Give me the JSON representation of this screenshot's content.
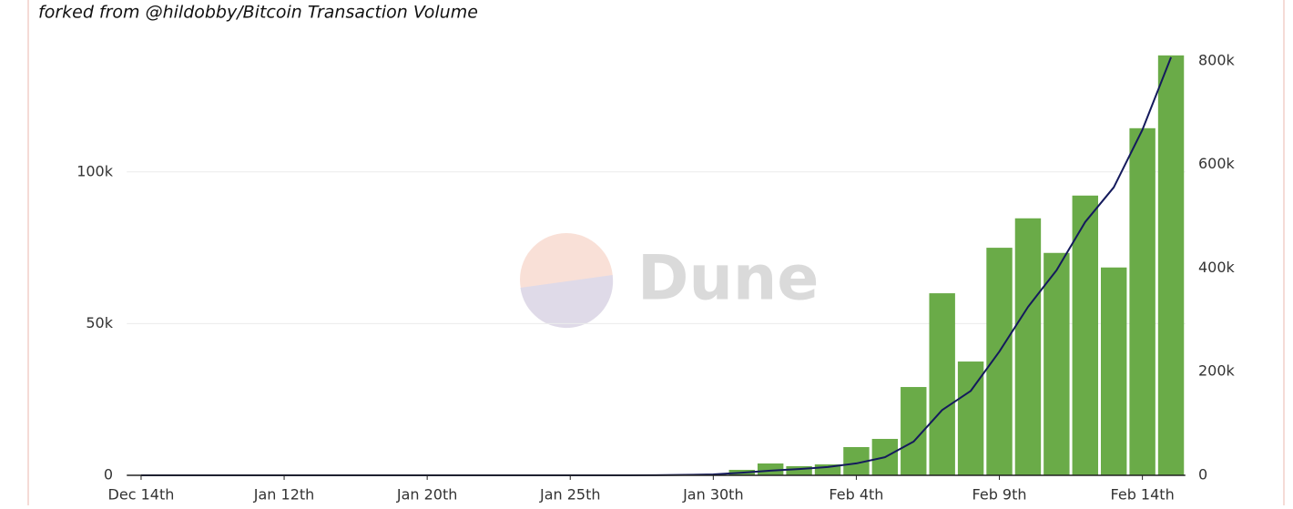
{
  "chart_data": {
    "type": "bar",
    "subtitle": "forked from @hildobby/Bitcoin Transaction Volume",
    "watermark": "Dune",
    "categories": [
      "Dec 14th",
      null,
      null,
      null,
      null,
      "Jan 12th",
      null,
      null,
      null,
      null,
      "Jan 20th",
      null,
      null,
      null,
      null,
      "Jan 25th",
      null,
      null,
      null,
      null,
      "Jan 30th",
      null,
      null,
      null,
      null,
      "Feb 4th",
      null,
      null,
      null,
      null,
      "Feb 9th",
      null,
      null,
      null,
      null,
      "Feb 14th",
      null
    ],
    "series": [
      {
        "type": "bar",
        "color": "#6aab48",
        "values": [
          0,
          0,
          0,
          0,
          0,
          0,
          0,
          0,
          0,
          0,
          0,
          0,
          0,
          0,
          0,
          0,
          0,
          0,
          0,
          100,
          400,
          1800,
          3900,
          3000,
          3600,
          9300,
          12000,
          29100,
          60000,
          37500,
          75000,
          84700,
          73300,
          92200,
          68500,
          114400,
          138400
        ]
      },
      {
        "type": "line",
        "axis": "y2",
        "color": "#141a5c",
        "values": [
          0,
          0,
          0,
          0,
          0,
          0,
          0,
          0,
          0,
          0,
          0,
          0,
          0,
          0,
          0,
          0,
          0,
          0,
          200,
          800,
          1700,
          5000,
          9000,
          12000,
          16000,
          23000,
          35000,
          65000,
          126000,
          163000,
          239000,
          325000,
          396000,
          489000,
          556000,
          667000,
          807000
        ]
      }
    ],
    "ylim": [
      0,
      140000
    ],
    "yticks": [
      0,
      {
        "value": 50000,
        "label": "50k"
      },
      {
        "value": 100000,
        "label": "100k"
      }
    ],
    "y2lim": [
      0,
      820000
    ],
    "y2ticks": [
      0,
      {
        "value": 200000,
        "label": "200k"
      },
      {
        "value": 400000,
        "label": "400k"
      },
      {
        "value": 600000,
        "label": "600k"
      },
      {
        "value": 800000,
        "label": "800k"
      }
    ],
    "grid": true
  }
}
